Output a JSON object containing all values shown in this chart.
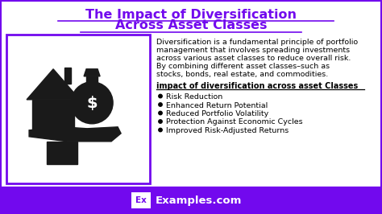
{
  "title_line1": "The Impact of Diversification",
  "title_line2": "Across Asset Classes",
  "title_color": "#7209EE",
  "title_fontsize": 11.5,
  "body_text_lines": [
    "Diversification is a fundamental principle of portfolio",
    "management that involves spreading investments",
    "across various asset classes to reduce overall risk.",
    "By combining different asset classes–such as",
    "stocks, bonds, real estate, and commodities."
  ],
  "body_fontsize": 6.8,
  "subtitle": "impact of diversification across asset Classes",
  "subtitle_fontsize": 7.0,
  "bullet_points": [
    "Risk Reduction",
    "Enhanced Return Potential",
    "Reduced Portfolio Volatility",
    "Protection Against Economic Cycles",
    "Improved Risk-Adjusted Returns"
  ],
  "bullet_fontsize": 6.8,
  "bg_color": "#ffffff",
  "footer_bg": "#7209EE",
  "footer_text": "Examples.com",
  "footer_fontsize": 9.5,
  "image_box_color": "#7209EE",
  "ex_box_color": "#ffffff",
  "ex_text_color": "#7209EE",
  "icon_color": "#1a1a1a",
  "border_color": "#7209EE"
}
